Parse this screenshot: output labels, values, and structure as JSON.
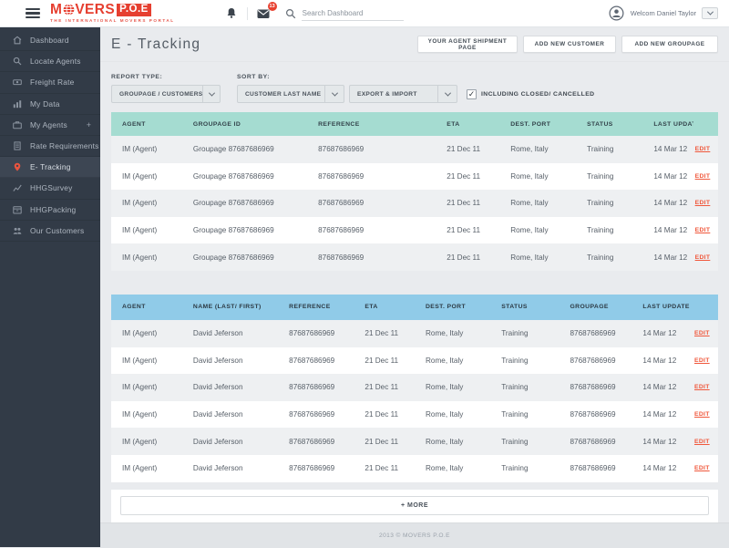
{
  "header": {
    "logo": {
      "part1": "M",
      "part2": "VERS",
      "badge": "P.O.E",
      "tagline": "THE INTERNATIONAL MOVERS PORTAL"
    },
    "search": {
      "placeholder": "Search Dashboard"
    },
    "notifications": {
      "message_count": "13"
    },
    "user": {
      "greeting": "Welcom Daniel Taylor"
    }
  },
  "sidebar": {
    "items": [
      {
        "label": "Dashboard",
        "icon": "home-icon",
        "active": false
      },
      {
        "label": "Locate Agents",
        "icon": "search-icon",
        "active": false
      },
      {
        "label": "Freight Rate",
        "icon": "money-icon",
        "active": false
      },
      {
        "label": "My Data",
        "icon": "bar-chart-icon",
        "active": false
      },
      {
        "label": "My Agents",
        "icon": "briefcase-icon",
        "active": false,
        "suffix": "+"
      },
      {
        "label": "Rate Requirements",
        "icon": "document-icon",
        "active": false
      },
      {
        "label": "E- Tracking",
        "icon": "map-pin-icon",
        "active": true
      },
      {
        "label": "HHGSurvey",
        "icon": "line-chart-icon",
        "active": false
      },
      {
        "label": "HHGPacking",
        "icon": "box-icon",
        "active": false
      },
      {
        "label": "Our Customers",
        "icon": "people-icon",
        "active": false
      }
    ]
  },
  "page": {
    "title": "E - Tracking",
    "actions": [
      "YOUR AGENT SHIPMENT PAGE",
      "ADD NEW CUSTOMER",
      "ADD NEW GROUPAGE"
    ]
  },
  "filters": {
    "report_type_label": "REPORT TYPE:",
    "report_type_value": "GROUPAGE / CUSTOMERS",
    "sort_by_label": "SORT BY:",
    "sort_value_1": "CUSTOMER LAST NAME",
    "sort_value_2": "EXPORT & IMPORT",
    "checkbox_label": "INCLUDING CLOSED/ CANCELLED",
    "checkbox_checked": true,
    "check_glyph": "✓"
  },
  "groupage_table": {
    "columns": [
      "AGENT",
      "GROUPAGE ID",
      "REFERENCE",
      "ETA",
      "DEST. PORT",
      "STATUS",
      "LAST UPDATE"
    ],
    "rows": [
      {
        "agent": "IM (Agent)",
        "groupage_id": "Groupage 87687686969",
        "reference": "87687686969",
        "eta": "21 Dec 11",
        "dest_port": "Rome, Italy",
        "status": "Training",
        "last_update": "14 Mar 12",
        "action": "EDIT"
      },
      {
        "agent": "IM (Agent)",
        "groupage_id": "Groupage 87687686969",
        "reference": "87687686969",
        "eta": "21 Dec 11",
        "dest_port": "Rome, Italy",
        "status": "Training",
        "last_update": "14 Mar 12",
        "action": "EDIT"
      },
      {
        "agent": "IM (Agent)",
        "groupage_id": "Groupage 87687686969",
        "reference": "87687686969",
        "eta": "21 Dec 11",
        "dest_port": "Rome, Italy",
        "status": "Training",
        "last_update": "14 Mar 12",
        "action": "EDIT"
      },
      {
        "agent": "IM (Agent)",
        "groupage_id": "Groupage 87687686969",
        "reference": "87687686969",
        "eta": "21 Dec 11",
        "dest_port": "Rome, Italy",
        "status": "Training",
        "last_update": "14 Mar 12",
        "action": "EDIT"
      },
      {
        "agent": "IM (Agent)",
        "groupage_id": "Groupage 87687686969",
        "reference": "87687686969",
        "eta": "21 Dec 11",
        "dest_port": "Rome, Italy",
        "status": "Training",
        "last_update": "14 Mar 12",
        "action": "EDIT"
      }
    ]
  },
  "customer_table": {
    "columns": [
      "AGENT",
      "NAME (LAST/ FIRST)",
      "REFERENCE",
      "ETA",
      "DEST. PORT",
      "STATUS",
      "GROUPAGE",
      "LAST UPDATE"
    ],
    "rows": [
      {
        "agent": "IM (Agent)",
        "name": "David Jeferson",
        "reference": "87687686969",
        "eta": "21 Dec 11",
        "dest_port": "Rome, Italy",
        "status": "Training",
        "groupage": "87687686969",
        "last_update": "14 Mar 12",
        "action": "EDIT"
      },
      {
        "agent": "IM (Agent)",
        "name": "David Jeferson",
        "reference": "87687686969",
        "eta": "21 Dec 11",
        "dest_port": "Rome, Italy",
        "status": "Training",
        "groupage": "87687686969",
        "last_update": "14 Mar 12",
        "action": "EDIT"
      },
      {
        "agent": "IM (Agent)",
        "name": "David Jeferson",
        "reference": "87687686969",
        "eta": "21 Dec 11",
        "dest_port": "Rome, Italy",
        "status": "Training",
        "groupage": "87687686969",
        "last_update": "14 Mar 12",
        "action": "EDIT"
      },
      {
        "agent": "IM (Agent)",
        "name": "David Jeferson",
        "reference": "87687686969",
        "eta": "21 Dec 11",
        "dest_port": "Rome, Italy",
        "status": "Training",
        "groupage": "87687686969",
        "last_update": "14 Mar 12",
        "action": "EDIT"
      },
      {
        "agent": "IM (Agent)",
        "name": "David Jeferson",
        "reference": "87687686969",
        "eta": "21 Dec 11",
        "dest_port": "Rome, Italy",
        "status": "Training",
        "groupage": "87687686969",
        "last_update": "14 Mar 12",
        "action": "EDIT"
      },
      {
        "agent": "IM (Agent)",
        "name": "David Jeferson",
        "reference": "87687686969",
        "eta": "21 Dec 11",
        "dest_port": "Rome, Italy",
        "status": "Training",
        "groupage": "87687686969",
        "last_update": "14 Mar 12",
        "action": "EDIT"
      }
    ]
  },
  "more_button": "+ MORE",
  "footer": {
    "copyright": "2013 © MOVERS P.O.E"
  },
  "colors": {
    "brand_red": "#e63f30",
    "edit_link": "#f0583c",
    "teal_header": "#a5dcd1",
    "blue_header": "#90cbe8",
    "sidebar_bg": "#323b47",
    "row_alt": "#eef0f2",
    "badge_red": "#e8402f"
  }
}
